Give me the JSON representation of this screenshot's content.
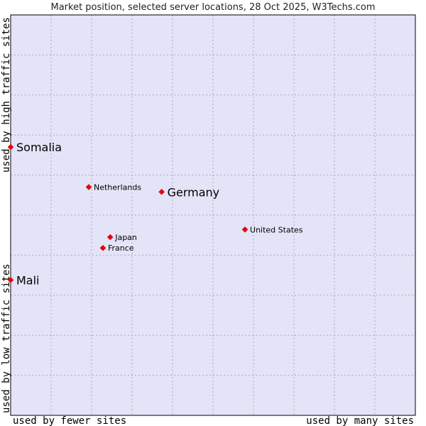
{
  "chart_data": {
    "type": "scatter",
    "title": "Market position, selected server locations, 28 Oct 2025, W3Techs.com",
    "xlabel_left": "used by fewer sites",
    "xlabel_right": "used by many sites",
    "ylabel_bottom": "used by low traffic sites",
    "ylabel_top": "used by high traffic sites",
    "xlim": [
      0,
      10
    ],
    "ylim": [
      0,
      10
    ],
    "grid": true,
    "points": [
      {
        "name": "Somalia",
        "x": 0.0,
        "y": 6.7,
        "emphasis": true
      },
      {
        "name": "Netherlands",
        "x": 1.93,
        "y": 5.7,
        "emphasis": false
      },
      {
        "name": "Germany",
        "x": 3.73,
        "y": 5.58,
        "emphasis": true
      },
      {
        "name": "United States",
        "x": 5.79,
        "y": 4.64,
        "emphasis": false
      },
      {
        "name": "Japan",
        "x": 2.46,
        "y": 4.45,
        "emphasis": false
      },
      {
        "name": "France",
        "x": 2.28,
        "y": 4.18,
        "emphasis": false
      },
      {
        "name": "Mali",
        "x": 0.0,
        "y": 3.38,
        "emphasis": true
      }
    ]
  },
  "colors": {
    "plot_background": "#e4e4f8",
    "grid": "#a8a8c0",
    "marker": "#ee0000",
    "border": "#000000"
  }
}
